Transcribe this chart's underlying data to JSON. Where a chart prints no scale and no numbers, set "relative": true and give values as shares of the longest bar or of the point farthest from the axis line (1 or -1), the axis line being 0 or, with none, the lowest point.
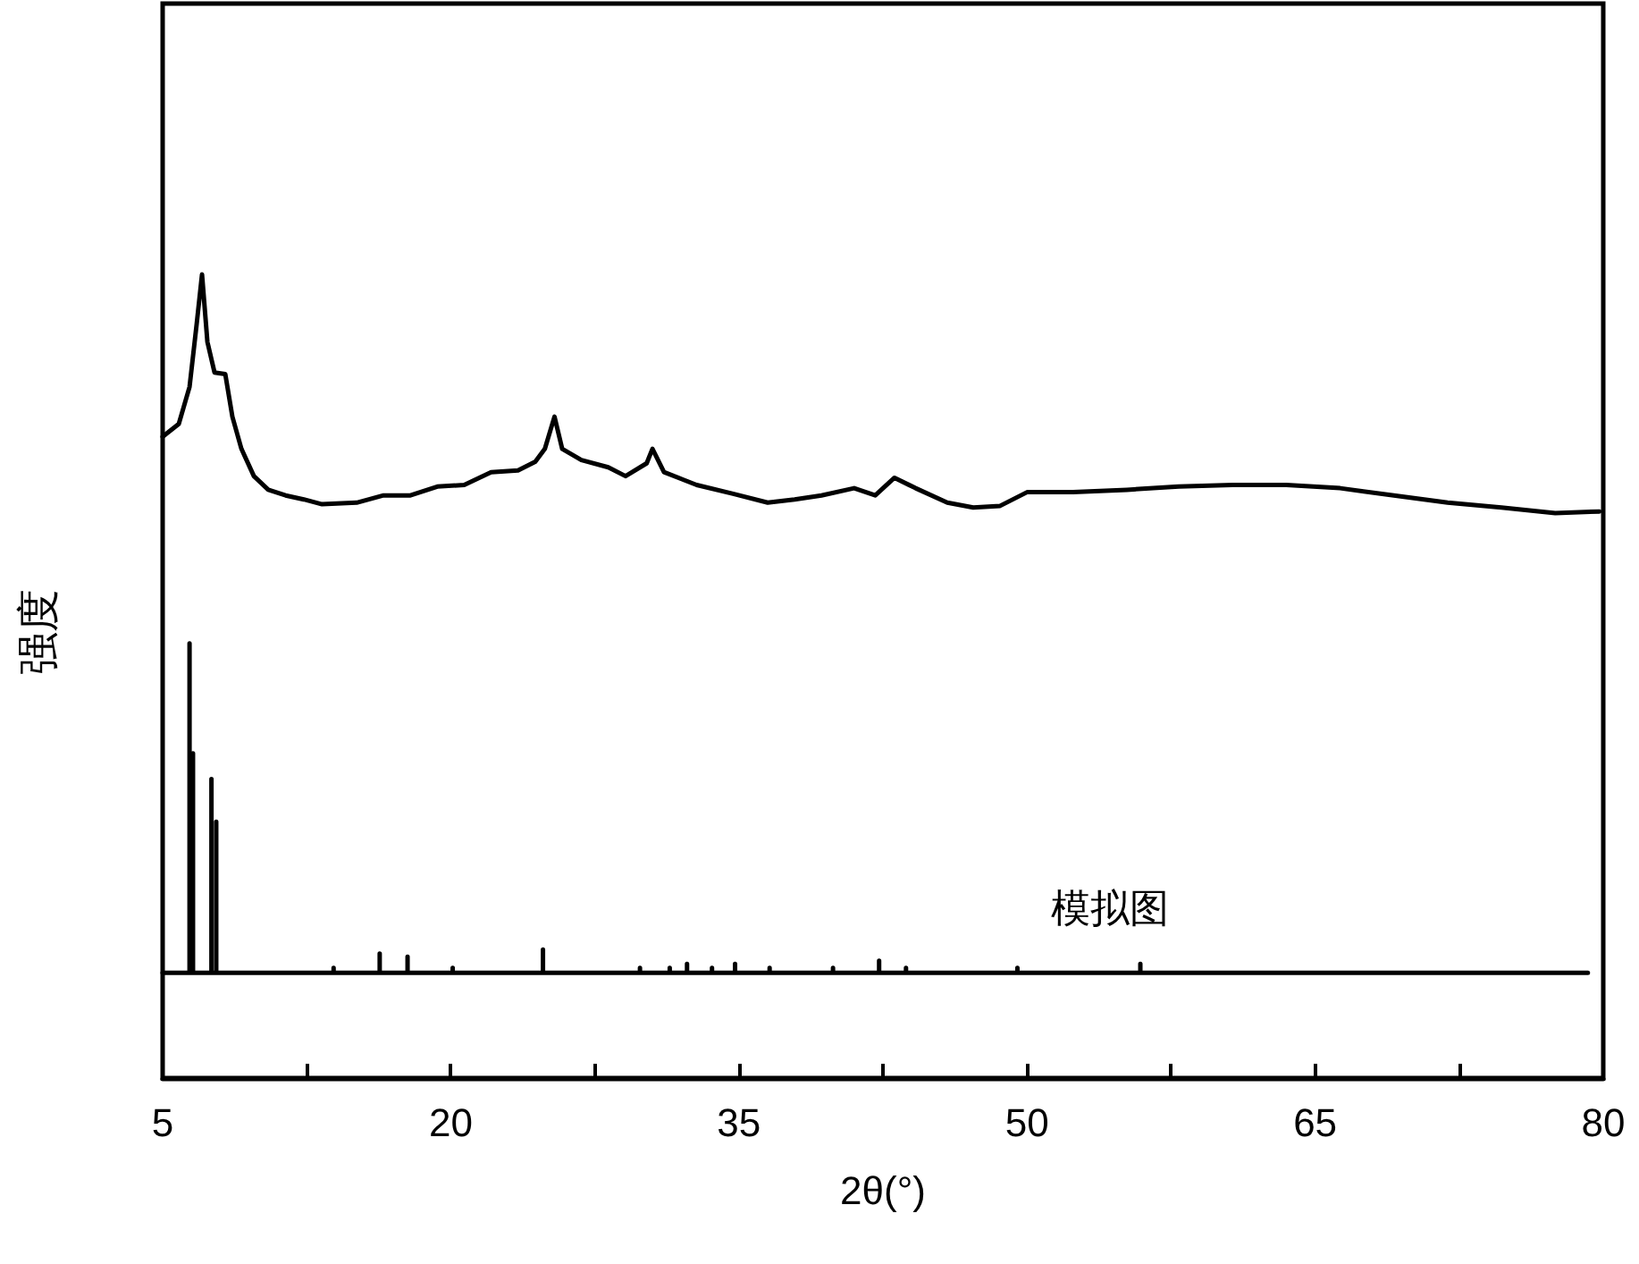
{
  "chart_data": {
    "type": "line",
    "relative": true,
    "xlabel": "2θ(°)",
    "ylabel": "强度",
    "xlim": [
      5,
      80
    ],
    "xticks": [
      5,
      {
        "value": 12.5,
        "label": null
      },
      20,
      {
        "value": 27.5,
        "label": null
      },
      35,
      {
        "value": 42.5,
        "label": null
      },
      50,
      {
        "value": 57.5,
        "label": null
      },
      65,
      {
        "value": 72.5,
        "label": null
      },
      80
    ],
    "marker": "none",
    "line_style": "solid",
    "grid": false,
    "annotations": [
      "模拟图"
    ],
    "series": [
      {
        "color": "#000000",
        "x": [
          5.0,
          5.84,
          6.4,
          6.77,
          7.05,
          7.33,
          7.7,
          8.26,
          8.63,
          9.1,
          9.75,
          10.5,
          11.4,
          12.35,
          13.3,
          15.1,
          16.5,
          17.9,
          19.3,
          20.7,
          22.1,
          23.5,
          24.4,
          24.9,
          25.4,
          25.8,
          26.8,
          28.2,
          29.1,
          30.2,
          30.5,
          31.1,
          32.8,
          34.7,
          36.5,
          37.9,
          39.3,
          41.0,
          42.1,
          43.1,
          44.2,
          45.85,
          47.2,
          48.6,
          50.0,
          52.4,
          55.2,
          57.9,
          60.7,
          63.5,
          66.3,
          69.1,
          71.9,
          74.7,
          77.5,
          79.8
        ],
        "values": [
          0.798,
          0.814,
          0.86,
          0.938,
          1.0,
          0.916,
          0.878,
          0.876,
          0.823,
          0.783,
          0.749,
          0.732,
          0.725,
          0.72,
          0.714,
          0.716,
          0.725,
          0.725,
          0.736,
          0.738,
          0.754,
          0.756,
          0.767,
          0.783,
          0.823,
          0.783,
          0.769,
          0.76,
          0.749,
          0.765,
          0.783,
          0.754,
          0.738,
          0.727,
          0.716,
          0.72,
          0.725,
          0.734,
          0.725,
          0.747,
          0.734,
          0.716,
          0.71,
          0.712,
          0.729,
          0.729,
          0.732,
          0.736,
          0.738,
          0.738,
          0.734,
          0.725,
          0.716,
          0.71,
          0.703,
          0.705
        ]
      },
      {
        "color": "#000000",
        "x": [
          5.0,
          6.4,
          6.4,
          6.4,
          6.58,
          6.58,
          6.58,
          7.54,
          7.54,
          7.54,
          7.79,
          7.79,
          7.79,
          13.9,
          13.9,
          13.9,
          16.3,
          16.3,
          16.3,
          17.75,
          17.75,
          17.75,
          20.1,
          20.1,
          20.1,
          24.8,
          24.8,
          24.8,
          29.85,
          29.85,
          29.85,
          31.4,
          31.4,
          31.4,
          32.3,
          32.3,
          32.3,
          33.6,
          33.6,
          33.6,
          34.8,
          34.8,
          34.8,
          36.6,
          36.6,
          36.6,
          39.9,
          39.9,
          39.9,
          42.3,
          42.3,
          42.3,
          43.7,
          43.7,
          43.7,
          49.5,
          49.5,
          49.5,
          55.9,
          55.9,
          55.9,
          79.2
        ],
        "values": [
          0.131,
          0.131,
          0.541,
          0.131,
          0.131,
          0.404,
          0.131,
          0.131,
          0.372,
          0.131,
          0.131,
          0.319,
          0.131,
          0.131,
          0.137,
          0.131,
          0.131,
          0.155,
          0.131,
          0.131,
          0.151,
          0.131,
          0.131,
          0.137,
          0.131,
          0.131,
          0.16,
          0.131,
          0.131,
          0.137,
          0.131,
          0.131,
          0.137,
          0.131,
          0.131,
          0.142,
          0.131,
          0.131,
          0.137,
          0.131,
          0.131,
          0.142,
          0.131,
          0.131,
          0.137,
          0.131,
          0.131,
          0.137,
          0.131,
          0.131,
          0.146,
          0.131,
          0.131,
          0.137,
          0.131,
          0.131,
          0.137,
          0.131,
          0.131,
          0.142,
          0.131,
          0.131
        ]
      }
    ]
  }
}
